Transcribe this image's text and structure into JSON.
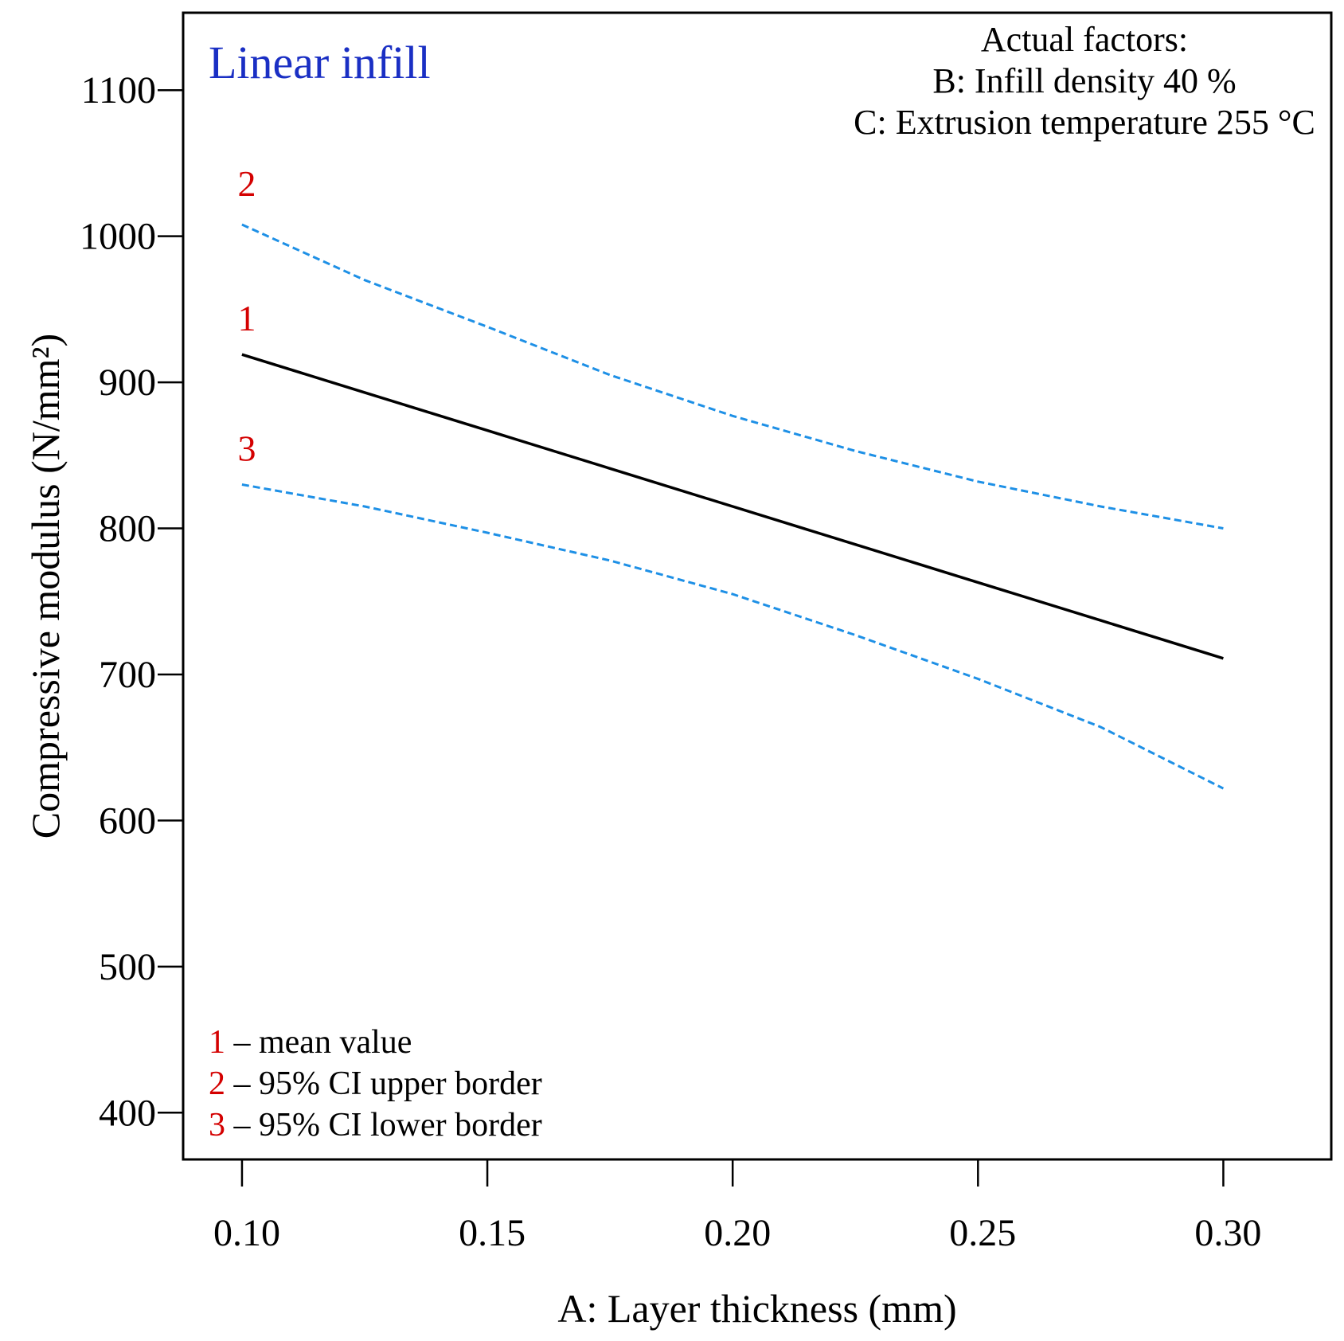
{
  "chart_data": {
    "type": "line",
    "title": "Linear infill",
    "xlabel": "A: Layer thickness (mm)",
    "ylabel": "Compressive modulus (N/mm²)",
    "xlim": [
      0.088,
      0.322
    ],
    "ylim": [
      368,
      1153
    ],
    "x_ticks": [
      0.1,
      0.15,
      0.2,
      0.25,
      0.3
    ],
    "x_tick_labels": [
      "0.10",
      "0.15",
      "0.20",
      "0.25",
      "0.30"
    ],
    "y_ticks": [
      400,
      500,
      600,
      700,
      800,
      900,
      1000,
      1100
    ],
    "y_tick_labels": [
      "400",
      "500",
      "600",
      "700",
      "800",
      "900",
      "1000",
      "1100"
    ],
    "factors": {
      "heading": "Actual factors:",
      "lines": [
        "B: Infill density 40 %",
        "C: Extrusion temperature 255 °C"
      ]
    },
    "x": [
      0.1,
      0.125,
      0.15,
      0.175,
      0.2,
      0.225,
      0.25,
      0.275,
      0.3
    ],
    "series": [
      {
        "id": "1",
        "name": "mean value",
        "style": "solid",
        "color": "#000000",
        "values": [
          919,
          893,
          867,
          841,
          815,
          789,
          763,
          737,
          711
        ]
      },
      {
        "id": "2",
        "name": "95% CI upper border",
        "style": "dashed",
        "color": "#1e90e6",
        "values": [
          1008,
          970,
          938,
          905,
          877,
          853,
          832,
          815,
          800
        ]
      },
      {
        "id": "3",
        "name": "95% CI lower border",
        "style": "dashed",
        "color": "#1e90e6",
        "values": [
          830,
          815,
          797,
          778,
          755,
          727,
          697,
          664,
          622
        ]
      }
    ],
    "legend": [
      {
        "num": "1",
        "sep": " – ",
        "text": "mean value"
      },
      {
        "num": "2",
        "sep": " – ",
        "text": "95% CI upper border"
      },
      {
        "num": "3",
        "sep": " – ",
        "text": "95% CI lower border"
      }
    ]
  }
}
